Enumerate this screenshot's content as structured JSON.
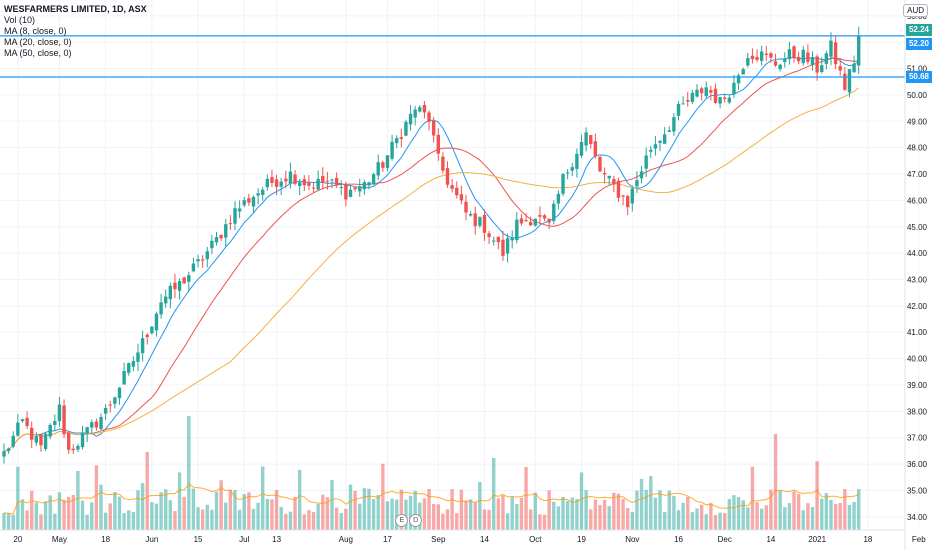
{
  "header": {
    "title": "WESFARMERS LIMITED, 1D, ASX",
    "indicators": [
      "Vol (10)",
      "MA (8, close, 0)",
      "MA (20, close, 0)",
      "MA (50, close, 0)"
    ],
    "currency": "AUD"
  },
  "price_tags": [
    {
      "label": "52.24",
      "value": 52.24,
      "color": "#26a69a"
    },
    {
      "label": "52.20",
      "value": 52.2,
      "color": "#2196f3"
    },
    {
      "label": "50.68",
      "value": 50.68,
      "color": "#2196f3"
    }
  ],
  "events": [
    "E",
    "D"
  ],
  "colors": {
    "up": "#26a69a",
    "down": "#ef5350",
    "ma8": "#2196f3",
    "ma20": "#ef5350",
    "ma50": "#f5b041",
    "hline": "#2196f3",
    "grid": "#f0f3fa"
  },
  "chart_data": {
    "type": "candlestick",
    "ylim": [
      33.5,
      53.6
    ],
    "y_ticks": [
      34,
      35,
      36,
      37,
      38,
      39,
      40,
      41,
      42,
      43,
      44,
      45,
      46,
      47,
      48,
      49,
      50,
      51,
      52,
      53
    ],
    "x_ticks": [
      {
        "label": "20",
        "i": 3
      },
      {
        "label": "May",
        "i": 12
      },
      {
        "label": "18",
        "i": 22
      },
      {
        "label": "Jun",
        "i": 32
      },
      {
        "label": "15",
        "i": 42
      },
      {
        "label": "Jul",
        "i": 52
      },
      {
        "label": "13",
        "i": 59
      },
      {
        "label": "Aug",
        "i": 74
      },
      {
        "label": "17",
        "i": 83
      },
      {
        "label": "Sep",
        "i": 94
      },
      {
        "label": "14",
        "i": 104
      },
      {
        "label": "Oct",
        "i": 115
      },
      {
        "label": "19",
        "i": 125
      },
      {
        "label": "Nov",
        "i": 136
      },
      {
        "label": "16",
        "i": 146
      },
      {
        "label": "Dec",
        "i": 156
      },
      {
        "label": "14",
        "i": 166
      },
      {
        "label": "2021",
        "i": 176
      },
      {
        "label": "18",
        "i": 187
      },
      {
        "label": "Feb",
        "i": 198
      }
    ],
    "horizontal_lines": [
      52.24,
      50.68
    ],
    "anchors": [
      [
        0,
        36.4
      ],
      [
        4,
        37.6
      ],
      [
        8,
        36.6
      ],
      [
        12,
        38.1
      ],
      [
        14,
        36.5
      ],
      [
        18,
        37.2
      ],
      [
        22,
        38.0
      ],
      [
        26,
        39.3
      ],
      [
        30,
        40.6
      ],
      [
        34,
        42.2
      ],
      [
        38,
        42.8
      ],
      [
        42,
        43.6
      ],
      [
        46,
        44.5
      ],
      [
        50,
        45.6
      ],
      [
        54,
        46.2
      ],
      [
        58,
        46.7
      ],
      [
        62,
        47.0
      ],
      [
        66,
        46.6
      ],
      [
        70,
        46.7
      ],
      [
        74,
        46.3
      ],
      [
        78,
        46.6
      ],
      [
        82,
        47.4
      ],
      [
        86,
        48.6
      ],
      [
        89,
        49.5
      ],
      [
        92,
        49.1
      ],
      [
        94,
        47.5
      ],
      [
        97,
        46.4
      ],
      [
        100,
        45.5
      ],
      [
        104,
        45.0
      ],
      [
        108,
        44.0
      ],
      [
        111,
        45.1
      ],
      [
        115,
        45.4
      ],
      [
        118,
        45.0
      ],
      [
        121,
        46.8
      ],
      [
        124,
        47.9
      ],
      [
        126,
        48.5
      ],
      [
        129,
        47.1
      ],
      [
        132,
        46.5
      ],
      [
        135,
        45.9
      ],
      [
        137,
        46.8
      ],
      [
        140,
        48.0
      ],
      [
        143,
        48.6
      ],
      [
        146,
        49.4
      ],
      [
        149,
        49.9
      ],
      [
        152,
        50.3
      ],
      [
        155,
        49.7
      ],
      [
        158,
        50.4
      ],
      [
        161,
        51.6
      ],
      [
        164,
        51.5
      ],
      [
        167,
        51.2
      ],
      [
        170,
        51.5
      ],
      [
        173,
        51.5
      ],
      [
        176,
        51.0
      ],
      [
        179,
        51.8
      ],
      [
        182,
        50.3
      ],
      [
        184,
        51.3
      ],
      [
        185,
        52.24
      ]
    ],
    "volume_note": "volume bars shown relative (no volume axis printed)"
  }
}
